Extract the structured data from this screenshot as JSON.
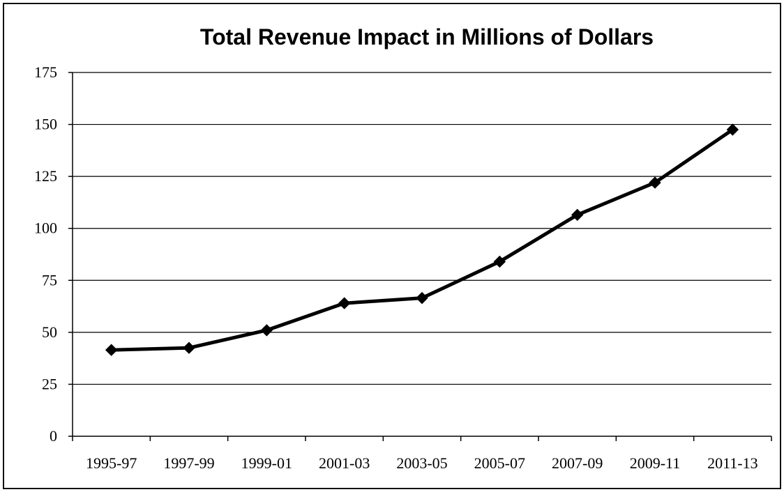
{
  "chart_data": {
    "type": "line",
    "title": "Total Revenue Impact in Millions of Dollars",
    "xlabel": "",
    "ylabel": "",
    "categories": [
      "1995-97",
      "1997-99",
      "1999-01",
      "2001-03",
      "2003-05",
      "2005-07",
      "2007-09",
      "2009-11",
      "2011-13"
    ],
    "series": [
      {
        "values": [
          41.5,
          42.5,
          51,
          64,
          66.5,
          84,
          106.5,
          122,
          147.5
        ]
      }
    ],
    "ylim": [
      0,
      175
    ],
    "yticks": [
      0,
      25,
      50,
      75,
      100,
      125,
      150,
      175
    ],
    "grid": true,
    "legend": "none",
    "marker": "diamond",
    "line_color": "#000000"
  }
}
